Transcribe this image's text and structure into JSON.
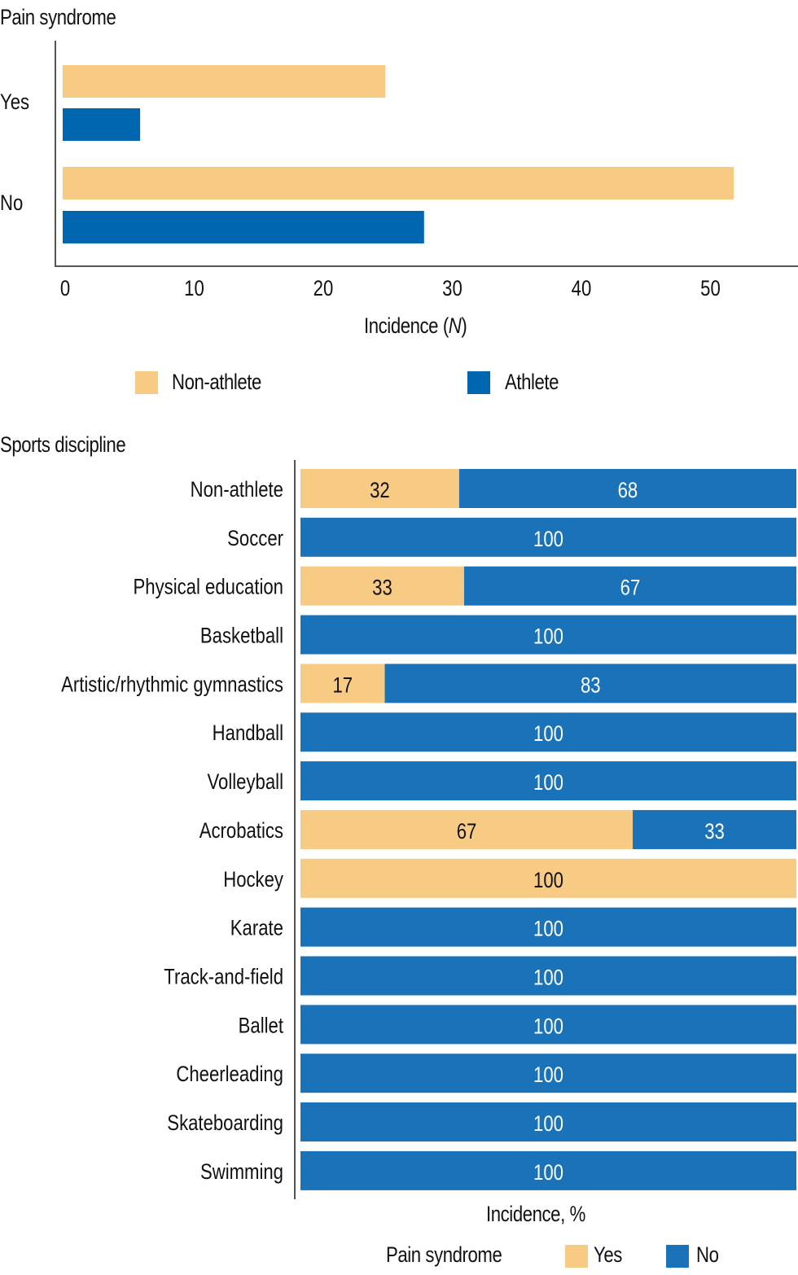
{
  "colors": {
    "non_athlete": "#F7CB83",
    "athlete": "#0066B0",
    "pain_yes": "#F7CB83",
    "pain_no": "#1A72B8"
  },
  "chart_data": [
    {
      "type": "bar",
      "orientation": "horizontal",
      "title": "Pain syndrome",
      "xlabel": "Incidence (N)",
      "ylabel": "",
      "categories": [
        "Yes",
        "No"
      ],
      "series": [
        {
          "name": "Non-athlete",
          "values": [
            25,
            52
          ]
        },
        {
          "name": "Athlete",
          "values": [
            6,
            28
          ]
        }
      ],
      "xlim": [
        0,
        57
      ],
      "xticks": [
        0,
        10,
        20,
        30,
        40,
        50
      ],
      "grid": false,
      "legend": {
        "position": "bottom",
        "entries": [
          "Non-athlete",
          "Athlete"
        ]
      }
    },
    {
      "type": "bar",
      "orientation": "horizontal",
      "stacked": true,
      "title": "Sports discipline",
      "xlabel": "Incidence, %",
      "ylabel": "",
      "categories": [
        "Non-athlete",
        "Soccer",
        "Physical education",
        "Basketball",
        "Artistic/rhythmic gymnastics",
        "Handball",
        "Volleyball",
        "Acrobatics",
        "Hockey",
        "Karate",
        "Track-and-field",
        "Ballet",
        "Cheerleading",
        "Skateboarding",
        "Swimming"
      ],
      "series": [
        {
          "name": "Yes",
          "values": [
            32,
            0,
            33,
            0,
            17,
            0,
            0,
            67,
            100,
            0,
            0,
            0,
            0,
            0,
            0
          ]
        },
        {
          "name": "No",
          "values": [
            68,
            100,
            67,
            100,
            83,
            100,
            100,
            33,
            0,
            100,
            100,
            100,
            100,
            100,
            100
          ]
        }
      ],
      "xlim": [
        0,
        100
      ],
      "grid": false,
      "legend": {
        "title": "Pain syndrome",
        "position": "bottom-right",
        "entries": [
          "Yes",
          "No"
        ]
      }
    }
  ],
  "top": {
    "title": "Pain syndrome",
    "xlabel_prefix": "Incidence (",
    "xlabel_var": "N",
    "xlabel_suffix": ")",
    "legend": [
      "Non-athlete",
      "Athlete"
    ]
  },
  "bottom": {
    "title": "Sports discipline",
    "xlabel": "Incidence, %",
    "legend_title": "Pain syndrome",
    "legend": [
      "Yes",
      "No"
    ]
  }
}
